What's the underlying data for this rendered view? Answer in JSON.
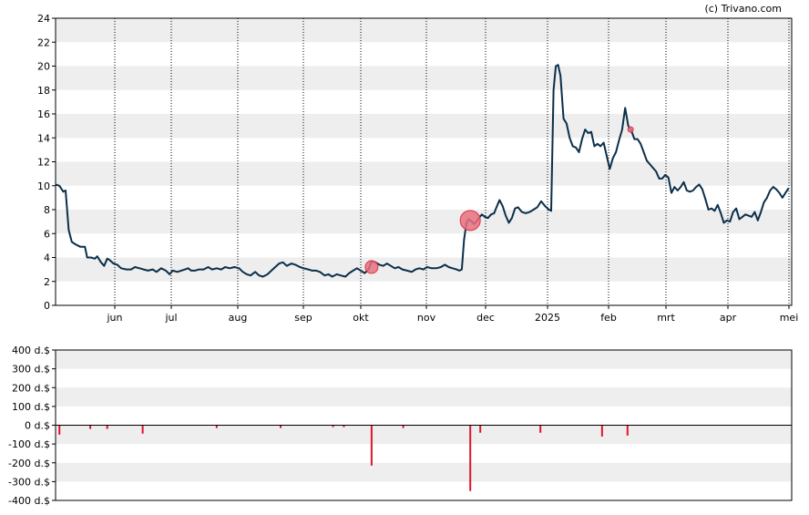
{
  "credit": "(c) Trivano.com",
  "colors": {
    "price_line": "#0b2f4a",
    "band": "#eeeeee",
    "marker": "#e8707c",
    "marker_stroke": "#d9334a",
    "volume_bar": "#e0142b"
  },
  "chart_data": [
    {
      "type": "line",
      "title": "",
      "x_tick_labels": [
        "jun",
        "jul",
        "aug",
        "sep",
        "okt",
        "nov",
        "dec",
        "2025",
        "feb",
        "mrt",
        "apr",
        "mei"
      ],
      "ylim": [
        0,
        24
      ],
      "y_ticks": [
        0,
        2,
        4,
        6,
        8,
        10,
        12,
        14,
        16,
        18,
        20,
        22,
        24
      ],
      "grid": true,
      "series": [
        {
          "points": [
            [
              0.0,
              10.1
            ],
            [
              0.5,
              10.0
            ],
            [
              1.0,
              9.5
            ],
            [
              1.3,
              9.6
            ],
            [
              1.7,
              6.3
            ],
            [
              2.1,
              5.3
            ],
            [
              2.6,
              5.1
            ],
            [
              3.2,
              4.9
            ],
            [
              3.8,
              4.9
            ],
            [
              4.1,
              4.0
            ],
            [
              4.6,
              4.0
            ],
            [
              5.1,
              3.9
            ],
            [
              5.4,
              4.1
            ],
            [
              5.9,
              3.6
            ],
            [
              6.3,
              3.3
            ],
            [
              6.7,
              3.9
            ],
            [
              7.0,
              3.8
            ],
            [
              7.5,
              3.5
            ],
            [
              8.0,
              3.4
            ],
            [
              8.5,
              3.1
            ],
            [
              9.2,
              3.0
            ],
            [
              9.8,
              3.0
            ],
            [
              10.3,
              3.2
            ],
            [
              10.9,
              3.1
            ],
            [
              11.4,
              3.0
            ],
            [
              12.0,
              2.9
            ],
            [
              12.6,
              3.0
            ],
            [
              13.1,
              2.8
            ],
            [
              13.7,
              3.1
            ],
            [
              14.3,
              2.9
            ],
            [
              14.8,
              2.6
            ],
            [
              15.2,
              2.9
            ],
            [
              15.8,
              2.8
            ],
            [
              16.3,
              2.9
            ],
            [
              16.8,
              3.0
            ],
            [
              17.2,
              3.1
            ],
            [
              17.6,
              2.9
            ],
            [
              18.1,
              2.9
            ],
            [
              18.6,
              3.0
            ],
            [
              19.2,
              3.0
            ],
            [
              19.8,
              3.2
            ],
            [
              20.3,
              3.0
            ],
            [
              20.9,
              3.1
            ],
            [
              21.5,
              3.0
            ],
            [
              22.0,
              3.2
            ],
            [
              22.6,
              3.1
            ],
            [
              23.2,
              3.2
            ],
            [
              23.8,
              3.1
            ],
            [
              24.3,
              2.8
            ],
            [
              24.8,
              2.6
            ],
            [
              25.3,
              2.5
            ],
            [
              25.9,
              2.8
            ],
            [
              26.4,
              2.5
            ],
            [
              26.9,
              2.4
            ],
            [
              27.5,
              2.6
            ],
            [
              28.0,
              2.9
            ],
            [
              28.5,
              3.2
            ],
            [
              29.0,
              3.5
            ],
            [
              29.5,
              3.6
            ],
            [
              30.0,
              3.3
            ],
            [
              30.6,
              3.5
            ],
            [
              31.1,
              3.4
            ],
            [
              31.7,
              3.2
            ],
            [
              32.2,
              3.1
            ],
            [
              32.8,
              3.0
            ],
            [
              33.3,
              2.9
            ],
            [
              33.8,
              2.9
            ],
            [
              34.3,
              2.8
            ],
            [
              34.9,
              2.5
            ],
            [
              35.4,
              2.6
            ],
            [
              35.9,
              2.4
            ],
            [
              36.5,
              2.6
            ],
            [
              37.0,
              2.5
            ],
            [
              37.6,
              2.4
            ],
            [
              38.1,
              2.7
            ],
            [
              38.6,
              2.9
            ],
            [
              39.1,
              3.1
            ],
            [
              39.6,
              2.9
            ],
            [
              40.1,
              2.7
            ],
            [
              40.6,
              3.0
            ],
            [
              41.0,
              3.7
            ],
            [
              41.5,
              3.6
            ],
            [
              42.0,
              3.4
            ],
            [
              42.5,
              3.3
            ],
            [
              43.0,
              3.5
            ],
            [
              43.5,
              3.3
            ],
            [
              44.0,
              3.1
            ],
            [
              44.5,
              3.2
            ],
            [
              45.0,
              3.0
            ],
            [
              45.6,
              2.9
            ],
            [
              46.2,
              2.8
            ],
            [
              46.7,
              3.0
            ],
            [
              47.2,
              3.1
            ],
            [
              47.7,
              3.0
            ],
            [
              48.2,
              3.2
            ],
            [
              48.8,
              3.1
            ],
            [
              49.4,
              3.1
            ],
            [
              50.0,
              3.2
            ],
            [
              50.5,
              3.4
            ],
            [
              51.0,
              3.2
            ],
            [
              51.5,
              3.1
            ],
            [
              52.0,
              3.0
            ],
            [
              52.4,
              2.9
            ],
            [
              52.7,
              3.0
            ],
            [
              53.0,
              5.5
            ],
            [
              53.3,
              6.9
            ],
            [
              53.6,
              7.2
            ],
            [
              54.0,
              7.0
            ],
            [
              54.3,
              6.8
            ],
            [
              54.6,
              7.0
            ],
            [
              54.9,
              7.3
            ],
            [
              55.3,
              7.6
            ],
            [
              55.7,
              7.4
            ],
            [
              56.1,
              7.3
            ],
            [
              56.5,
              7.6
            ],
            [
              56.9,
              7.7
            ],
            [
              57.2,
              8.2
            ],
            [
              57.6,
              8.8
            ],
            [
              58.0,
              8.3
            ],
            [
              58.4,
              7.5
            ],
            [
              58.8,
              6.9
            ],
            [
              59.2,
              7.3
            ],
            [
              59.6,
              8.1
            ],
            [
              60.0,
              8.2
            ],
            [
              60.5,
              7.8
            ],
            [
              61.0,
              7.7
            ],
            [
              61.5,
              7.8
            ],
            [
              62.0,
              8.0
            ],
            [
              62.5,
              8.2
            ],
            [
              63.0,
              8.7
            ],
            [
              63.5,
              8.3
            ],
            [
              64.0,
              8.0
            ],
            [
              64.3,
              7.9
            ],
            [
              64.6,
              18.0
            ],
            [
              64.9,
              20.0
            ],
            [
              65.2,
              20.1
            ],
            [
              65.5,
              19.2
            ],
            [
              65.9,
              15.6
            ],
            [
              66.3,
              15.2
            ],
            [
              66.7,
              14.0
            ],
            [
              67.1,
              13.3
            ],
            [
              67.5,
              13.2
            ],
            [
              67.9,
              12.8
            ],
            [
              68.3,
              13.9
            ],
            [
              68.7,
              14.7
            ],
            [
              69.1,
              14.4
            ],
            [
              69.5,
              14.5
            ],
            [
              69.9,
              13.3
            ],
            [
              70.3,
              13.5
            ],
            [
              70.7,
              13.3
            ],
            [
              71.1,
              13.6
            ],
            [
              71.5,
              12.5
            ],
            [
              71.9,
              11.4
            ],
            [
              72.3,
              12.3
            ],
            [
              72.7,
              12.8
            ],
            [
              73.1,
              13.8
            ],
            [
              73.5,
              14.7
            ],
            [
              73.9,
              16.5
            ],
            [
              74.3,
              15.0
            ],
            [
              74.7,
              14.6
            ],
            [
              75.1,
              13.9
            ],
            [
              75.5,
              13.9
            ],
            [
              75.9,
              13.5
            ],
            [
              76.3,
              12.8
            ],
            [
              76.7,
              12.1
            ],
            [
              77.1,
              11.8
            ],
            [
              77.5,
              11.5
            ],
            [
              77.9,
              11.2
            ],
            [
              78.3,
              10.6
            ],
            [
              78.7,
              10.6
            ],
            [
              79.1,
              10.9
            ],
            [
              79.5,
              10.7
            ],
            [
              79.9,
              9.4
            ],
            [
              80.3,
              9.9
            ],
            [
              80.7,
              9.6
            ],
            [
              81.1,
              9.9
            ],
            [
              81.5,
              10.3
            ],
            [
              81.9,
              9.6
            ],
            [
              82.3,
              9.5
            ],
            [
              82.7,
              9.6
            ],
            [
              83.1,
              9.9
            ],
            [
              83.5,
              10.1
            ],
            [
              83.9,
              9.7
            ],
            [
              84.3,
              8.9
            ],
            [
              84.7,
              8.0
            ],
            [
              85.1,
              8.1
            ],
            [
              85.5,
              7.9
            ],
            [
              85.9,
              8.4
            ],
            [
              86.3,
              7.7
            ],
            [
              86.7,
              6.9
            ],
            [
              87.1,
              7.1
            ],
            [
              87.5,
              7.0
            ],
            [
              87.9,
              7.8
            ],
            [
              88.3,
              8.1
            ],
            [
              88.7,
              7.2
            ],
            [
              89.1,
              7.4
            ],
            [
              89.5,
              7.6
            ],
            [
              89.9,
              7.5
            ],
            [
              90.3,
              7.4
            ],
            [
              90.7,
              7.8
            ],
            [
              91.1,
              7.1
            ],
            [
              91.5,
              7.8
            ],
            [
              91.9,
              8.6
            ],
            [
              92.3,
              9.0
            ],
            [
              92.7,
              9.6
            ],
            [
              93.1,
              9.9
            ],
            [
              93.5,
              9.7
            ],
            [
              93.9,
              9.4
            ],
            [
              94.3,
              9.0
            ],
            [
              94.7,
              9.4
            ],
            [
              95.1,
              9.8
            ]
          ]
        }
      ],
      "markers": [
        {
          "x": 41.0,
          "y": 3.2,
          "size": "medium"
        },
        {
          "x": 53.8,
          "y": 7.1,
          "size": "large"
        },
        {
          "x": 74.6,
          "y": 14.7,
          "size": "small"
        }
      ]
    },
    {
      "type": "bar",
      "title": "",
      "ylim": [
        -400,
        400
      ],
      "y_tick_labels": [
        "400 d.$",
        "300 d.$",
        "200 d.$",
        "100 d.$",
        "0 d.$",
        "-100 d.$",
        "-200 d.$",
        "-300 d.$",
        "-400 d.$"
      ],
      "grid": true,
      "bars": [
        {
          "x": 0.5,
          "value": -50
        },
        {
          "x": 4.5,
          "value": -20
        },
        {
          "x": 6.7,
          "value": -20
        },
        {
          "x": 11.3,
          "value": -45
        },
        {
          "x": 20.9,
          "value": -15
        },
        {
          "x": 29.2,
          "value": -15
        },
        {
          "x": 36.0,
          "value": -10
        },
        {
          "x": 37.4,
          "value": -10
        },
        {
          "x": 41.0,
          "value": -215
        },
        {
          "x": 45.1,
          "value": -15
        },
        {
          "x": 53.8,
          "value": -350
        },
        {
          "x": 55.1,
          "value": -40
        },
        {
          "x": 62.9,
          "value": -40
        },
        {
          "x": 70.9,
          "value": -60
        },
        {
          "x": 74.2,
          "value": -55
        }
      ]
    }
  ]
}
